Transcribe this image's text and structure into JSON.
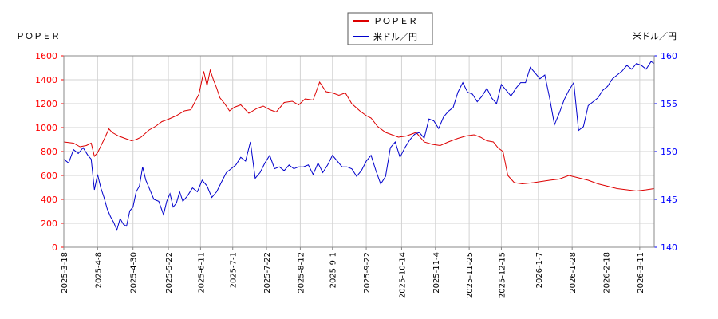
{
  "colors": {
    "series1": "#dd0000",
    "series2": "#0000cc",
    "left_axis": "#ff0000",
    "right_axis": "#0000ff",
    "grid": "#d3d3d3"
  },
  "chart_data": {
    "type": "line",
    "left_axis_title": "ＰＯＰＥＲ",
    "right_axis_title": "米ドル／円",
    "legend_position": "top-center",
    "grid": true,
    "y_left_lim": [
      0,
      1600
    ],
    "y_left_ticks": [
      "0",
      "200",
      "400",
      "600",
      "800",
      "1000",
      "1200",
      "1400",
      "1600"
    ],
    "y_right_lim": [
      140,
      160
    ],
    "y_right_ticks": [
      "140",
      "145",
      "150",
      "155",
      "160"
    ],
    "x_ticks": [
      "2025-3-18",
      "2025-4-8",
      "2025-4-30",
      "2025-5-22",
      "2025-6-11",
      "2025-7-1",
      "2025-7-22",
      "2025-8-12",
      "2025-9-1",
      "2025-9-22",
      "2025-10-14",
      "2025-11-4",
      "2025-11-25",
      "2025-12-15",
      "2026-1-7",
      "2026-1-28",
      "2026-2-18",
      "2026-3-11"
    ],
    "x_ticks_pos": [
      0,
      21,
      43,
      65,
      85,
      105,
      126,
      147,
      167,
      188,
      210,
      231,
      252,
      272,
      295,
      316,
      337,
      358
    ],
    "x_range": [
      0,
      367
    ],
    "series": [
      {
        "name": "ＰＯＰＥＲ",
        "axis": "left",
        "x": [
          0,
          6,
          10,
          14,
          17,
          19,
          21,
          25,
          28,
          30,
          34,
          38,
          42,
          45,
          48,
          53,
          57,
          61,
          65,
          70,
          75,
          79,
          84,
          87,
          89,
          91,
          93,
          95,
          97,
          100,
          103,
          106,
          110,
          115,
          120,
          124,
          128,
          132,
          137,
          142,
          146,
          150,
          155,
          159,
          163,
          167,
          171,
          175,
          179,
          184,
          188,
          191,
          195,
          200,
          204,
          208,
          213,
          219,
          224,
          229,
          234,
          239,
          245,
          250,
          255,
          259,
          263,
          267,
          270,
          273,
          276,
          280,
          285,
          292,
          297,
          302,
          308,
          314,
          320,
          326,
          332,
          338,
          344,
          350,
          356,
          362,
          367
        ],
        "values": [
          880,
          870,
          840,
          850,
          870,
          760,
          790,
          900,
          990,
          960,
          930,
          910,
          890,
          900,
          920,
          980,
          1010,
          1050,
          1070,
          1100,
          1140,
          1150,
          1280,
          1470,
          1350,
          1480,
          1400,
          1330,
          1250,
          1200,
          1140,
          1170,
          1190,
          1120,
          1160,
          1180,
          1150,
          1130,
          1210,
          1220,
          1190,
          1240,
          1230,
          1380,
          1300,
          1290,
          1270,
          1290,
          1200,
          1140,
          1100,
          1080,
          1010,
          960,
          940,
          920,
          930,
          960,
          880,
          860,
          850,
          880,
          910,
          930,
          940,
          920,
          890,
          880,
          830,
          800,
          600,
          540,
          530,
          540,
          550,
          560,
          570,
          600,
          580,
          560,
          530,
          510,
          490,
          480,
          470,
          480,
          490
        ]
      },
      {
        "name": "米ドル／円",
        "axis": "right",
        "x": [
          0,
          3,
          6,
          9,
          12,
          15,
          17,
          19,
          21,
          23,
          25,
          27,
          29,
          31,
          33,
          35,
          37,
          39,
          41,
          43,
          45,
          47,
          49,
          51,
          53,
          56,
          59,
          62,
          64,
          66,
          68,
          70,
          72,
          74,
          77,
          80,
          83,
          86,
          89,
          92,
          95,
          98,
          101,
          104,
          107,
          110,
          113,
          116,
          119,
          122,
          125,
          128,
          131,
          134,
          137,
          140,
          143,
          146,
          149,
          152,
          155,
          158,
          161,
          164,
          167,
          170,
          173,
          176,
          179,
          182,
          185,
          188,
          191,
          194,
          197,
          200,
          203,
          206,
          209,
          212,
          215,
          218,
          221,
          224,
          227,
          230,
          233,
          236,
          239,
          242,
          245,
          248,
          251,
          254,
          257,
          260,
          263,
          266,
          269,
          272,
          275,
          278,
          281,
          284,
          287,
          290,
          293,
          296,
          299,
          302,
          305,
          308,
          311,
          314,
          317,
          320,
          323,
          326,
          329,
          332,
          335,
          338,
          341,
          344,
          347,
          350,
          353,
          356,
          359,
          362,
          365,
          367
        ],
        "values": [
          149.2,
          148.8,
          150.2,
          149.8,
          150.4,
          149.6,
          149.2,
          146.0,
          147.6,
          146.2,
          145.2,
          144.0,
          143.2,
          142.6,
          141.8,
          143.0,
          142.4,
          142.2,
          143.8,
          144.2,
          145.8,
          146.4,
          148.4,
          147.0,
          146.2,
          145.0,
          144.8,
          143.4,
          144.8,
          145.6,
          144.2,
          144.6,
          145.8,
          144.8,
          145.4,
          146.2,
          145.8,
          147.0,
          146.4,
          145.2,
          145.8,
          146.8,
          147.8,
          148.2,
          148.6,
          149.4,
          149.0,
          151.0,
          147.2,
          147.8,
          148.8,
          149.6,
          148.2,
          148.4,
          148.0,
          148.6,
          148.2,
          148.4,
          148.4,
          148.6,
          147.6,
          148.8,
          147.8,
          148.6,
          149.6,
          149.0,
          148.4,
          148.4,
          148.2,
          147.4,
          148.0,
          149.0,
          149.6,
          148.0,
          146.6,
          147.4,
          150.4,
          151.0,
          149.4,
          150.4,
          151.2,
          151.8,
          152.0,
          151.4,
          153.4,
          153.2,
          152.4,
          153.6,
          154.2,
          154.6,
          156.2,
          157.2,
          156.2,
          156.0,
          155.2,
          155.8,
          156.6,
          155.6,
          155.0,
          157.0,
          156.4,
          155.8,
          156.6,
          157.2,
          157.2,
          158.8,
          158.2,
          157.6,
          158.0,
          155.6,
          152.8,
          154.0,
          155.4,
          156.4,
          157.2,
          152.2,
          152.6,
          154.8,
          155.2,
          155.6,
          156.4,
          156.8,
          157.6,
          158.0,
          158.4,
          159.0,
          158.6,
          159.2,
          159.0,
          158.6,
          159.4,
          159.2
        ]
      }
    ]
  }
}
